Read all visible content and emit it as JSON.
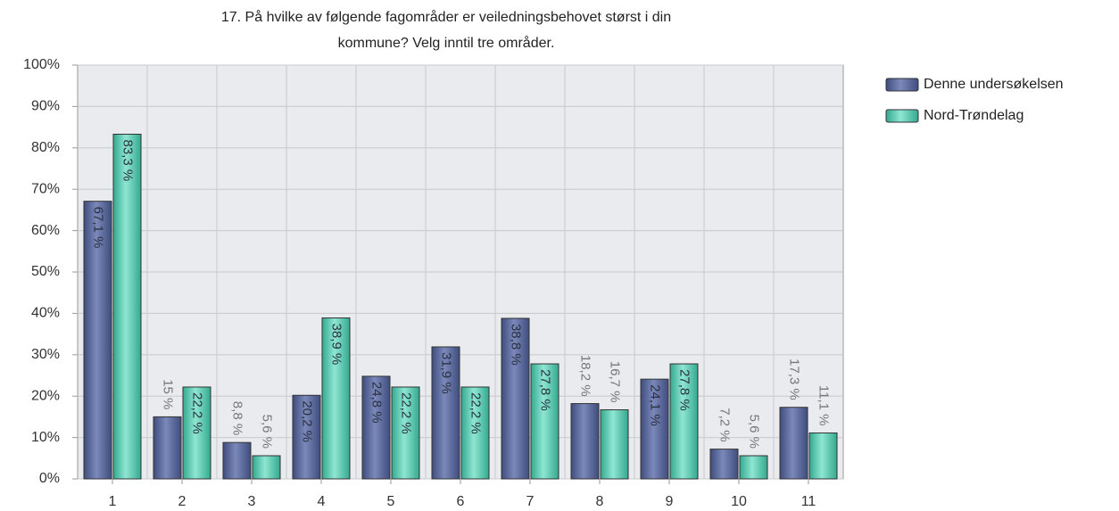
{
  "chart_data": {
    "type": "bar",
    "title": [
      "17. På hvilke av følgende fagområder er veiledningsbehovet størst i din",
      "kommune? Velg inntil tre områder."
    ],
    "categories": [
      "1",
      "2",
      "3",
      "4",
      "5",
      "6",
      "7",
      "8",
      "9",
      "10",
      "11"
    ],
    "series": [
      {
        "name": "Denne undersøkelsen",
        "color": "#5b6a9c",
        "values": [
          67.1,
          15,
          8.8,
          20.2,
          24.8,
          31.9,
          38.8,
          18.2,
          24.1,
          7.2,
          17.3
        ],
        "value_labels": [
          "67,1 %",
          "15 %",
          "8,8 %",
          "20,2 %",
          "24,8 %",
          "31,9 %",
          "38,8 %",
          "18,2 %",
          "24,1 %",
          "7,2 %",
          "17,3 %"
        ]
      },
      {
        "name": "Nord-Trøndelag",
        "color": "#5ccfb5",
        "values": [
          83.3,
          22.2,
          5.6,
          38.9,
          22.2,
          22.2,
          27.8,
          16.7,
          27.8,
          5.6,
          11.1
        ],
        "value_labels": [
          "83,3 %",
          "22,2 %",
          "5,6 %",
          "38,9 %",
          "22,2 %",
          "22,2 %",
          "27,8 %",
          "16,7 %",
          "27,8 %",
          "5,6 %",
          "11,1 %"
        ]
      }
    ],
    "ylim": [
      0,
      100
    ],
    "yticks": [
      {
        "value": 0,
        "label": "0%"
      },
      {
        "value": 10,
        "label": "10%"
      },
      {
        "value": 20,
        "label": "20%"
      },
      {
        "value": 30,
        "label": "30%"
      },
      {
        "value": 40,
        "label": "40%"
      },
      {
        "value": 50,
        "label": "50%"
      },
      {
        "value": 60,
        "label": "60%"
      },
      {
        "value": 70,
        "label": "70%"
      },
      {
        "value": 80,
        "label": "80%"
      },
      {
        "value": 90,
        "label": "90%"
      },
      {
        "value": 100,
        "label": "100%"
      }
    ],
    "grid": true,
    "legend": "right"
  }
}
